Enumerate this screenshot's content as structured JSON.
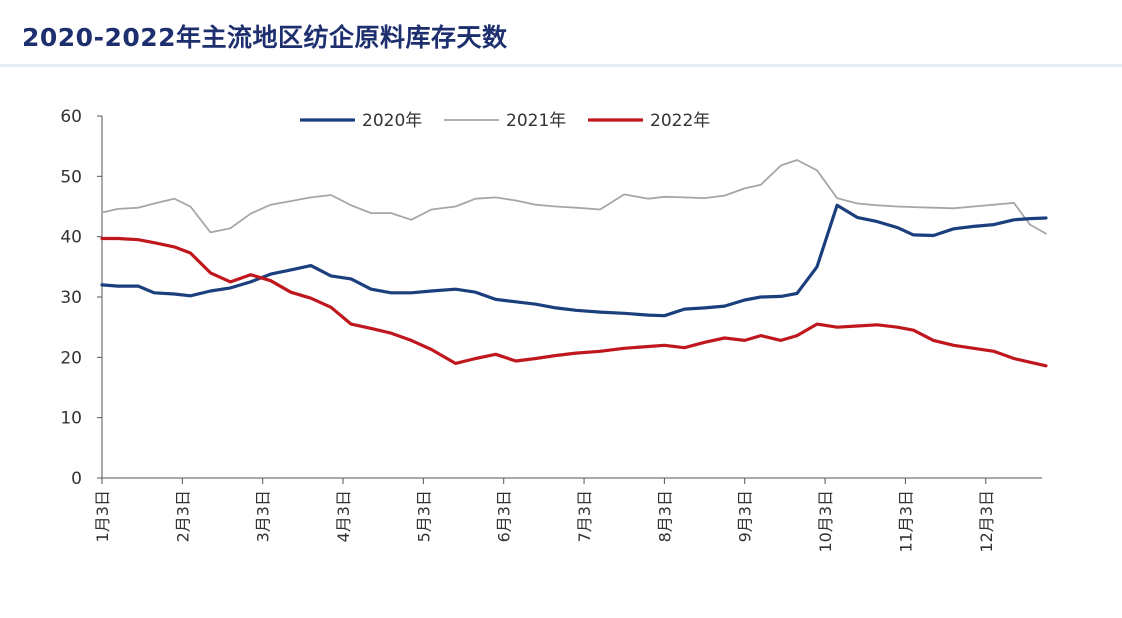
{
  "chart_data": {
    "type": "line",
    "title": "2020-2022年主流地区纺企原料库存天数",
    "xlabel": "",
    "ylabel": "",
    "ylim": [
      0,
      60
    ],
    "yticks": [
      "0",
      "10",
      "20",
      "30",
      "40",
      "50",
      "60"
    ],
    "x_ticks": [
      "1月3日",
      "2月3日",
      "3月3日",
      "4月3日",
      "5月3日",
      "6月3日",
      "7月3日",
      "8月3日",
      "9月3日",
      "10月3日",
      "11月3日",
      "12月3日"
    ],
    "x_range": [
      0,
      11.7
    ],
    "legend_position": "top",
    "series": [
      {
        "name": "2020年",
        "color": "#1b3f7d",
        "x": [
          0,
          0.2,
          0.45,
          0.65,
          0.9,
          1.1,
          1.35,
          1.6,
          1.85,
          2.1,
          2.35,
          2.6,
          2.85,
          3.1,
          3.35,
          3.6,
          3.85,
          4.1,
          4.4,
          4.65,
          4.9,
          5.15,
          5.4,
          5.65,
          5.9,
          6.2,
          6.5,
          6.8,
          7.0,
          7.25,
          7.5,
          7.75,
          8.0,
          8.2,
          8.45,
          8.65,
          8.9,
          9.15,
          9.4,
          9.65,
          9.9,
          10.1,
          10.35,
          10.6,
          10.85,
          11.1,
          11.35,
          11.55,
          11.75
        ],
        "values": [
          32,
          31.8,
          31.8,
          30.7,
          30.5,
          30.2,
          31,
          31.5,
          32.5,
          33.8,
          34.5,
          35.2,
          33.5,
          33,
          31.3,
          30.7,
          30.7,
          31,
          31.3,
          30.8,
          29.6,
          29.2,
          28.8,
          28.2,
          27.8,
          27.5,
          27.3,
          27.0,
          26.9,
          28,
          28.2,
          28.5,
          29.5,
          30.0,
          30.1,
          30.6,
          35,
          45.2,
          43.2,
          42.5,
          41.5,
          40.3,
          40.2,
          41.3,
          41.7,
          42,
          42.8,
          43,
          43.1
        ]
      },
      {
        "name": "2021年",
        "color": "#a6a6a6",
        "x": [
          0,
          0.2,
          0.45,
          0.65,
          0.9,
          1.1,
          1.35,
          1.6,
          1.85,
          2.1,
          2.35,
          2.6,
          2.85,
          3.1,
          3.35,
          3.6,
          3.85,
          4.1,
          4.4,
          4.65,
          4.9,
          5.15,
          5.4,
          5.65,
          5.9,
          6.2,
          6.5,
          6.8,
          7.0,
          7.25,
          7.5,
          7.75,
          8.0,
          8.2,
          8.45,
          8.65,
          8.9,
          9.15,
          9.4,
          9.65,
          9.9,
          10.1,
          10.35,
          10.6,
          10.85,
          11.1,
          11.35,
          11.55,
          11.75
        ],
        "values": [
          44,
          44.6,
          44.8,
          45.5,
          46.3,
          45,
          40.7,
          41.4,
          43.8,
          45.3,
          45.9,
          46.5,
          46.9,
          45.2,
          43.9,
          43.9,
          42.8,
          44.5,
          45,
          46.3,
          46.5,
          46,
          45.3,
          45,
          44.8,
          44.5,
          47,
          46.3,
          46.6,
          46.5,
          46.4,
          46.8,
          48,
          48.6,
          51.8,
          52.7,
          51,
          46.4,
          45.5,
          45.2,
          45,
          44.9,
          44.8,
          44.7,
          45,
          45.3,
          45.6,
          42,
          40.5
        ]
      },
      {
        "name": "2022年",
        "color": "#c0171f",
        "x": [
          0,
          0.2,
          0.45,
          0.65,
          0.9,
          1.1,
          1.35,
          1.6,
          1.85,
          2.1,
          2.35,
          2.6,
          2.85,
          3.1,
          3.35,
          3.6,
          3.85,
          4.1,
          4.4,
          4.65,
          4.9,
          5.15,
          5.4,
          5.65,
          5.9,
          6.2,
          6.5,
          6.8,
          7.0,
          7.25,
          7.5,
          7.75,
          8.0,
          8.2,
          8.45,
          8.65,
          8.9,
          9.15,
          9.4,
          9.65,
          9.9,
          10.1,
          10.35,
          10.6,
          10.85,
          11.1,
          11.35,
          11.55,
          11.75
        ],
        "values": [
          39.7,
          39.7,
          39.5,
          39.0,
          38.3,
          37.3,
          34.0,
          32.5,
          33.7,
          32.7,
          30.8,
          29.8,
          28.3,
          25.5,
          24.8,
          24.0,
          22.8,
          21.3,
          19.0,
          19.8,
          20.5,
          19.4,
          19.8,
          20.3,
          20.7,
          21.0,
          21.5,
          21.8,
          22.0,
          21.6,
          22.5,
          23.2,
          22.8,
          23.6,
          22.8,
          23.6,
          25.5,
          25.0,
          25.2,
          25.4,
          25.0,
          24.5,
          22.8,
          22.0,
          21.5,
          21.0,
          19.8,
          19.2,
          18.6
        ]
      }
    ]
  }
}
